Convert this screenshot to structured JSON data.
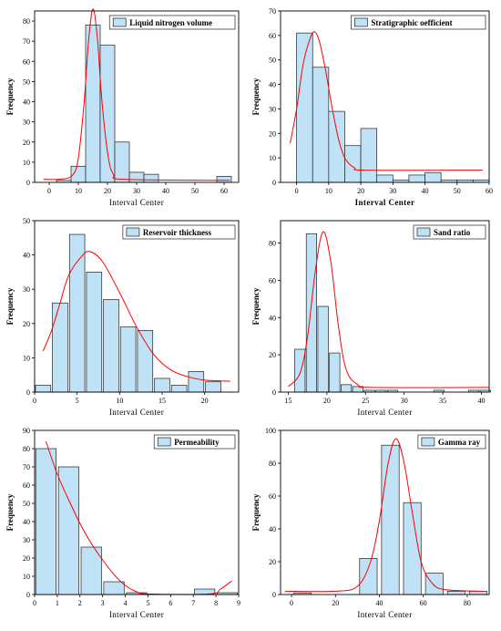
{
  "chart_data": [
    {
      "type": "bar",
      "legend": "Liquid nitrogen volume",
      "xlabel": "Interval Center",
      "xlabel_bold": false,
      "ylabel": "Frequency",
      "xlim": [
        -5,
        65
      ],
      "xticks": [
        0,
        10,
        20,
        30,
        40,
        50,
        60
      ],
      "ylim": [
        0,
        85
      ],
      "yticks": [
        0,
        10,
        20,
        30,
        40,
        50,
        60,
        70,
        80
      ],
      "bin_width": 5,
      "bins_x": [
        5,
        10,
        15,
        20,
        25,
        30,
        35,
        60
      ],
      "values": [
        1,
        8,
        78,
        68,
        20,
        5,
        4,
        3
      ],
      "fit_curve": [
        [
          -2,
          1.5
        ],
        [
          4,
          1.6
        ],
        [
          8,
          3.5
        ],
        [
          10,
          12
        ],
        [
          12,
          40
        ],
        [
          13.5,
          70
        ],
        [
          15,
          86
        ],
        [
          16.5,
          72
        ],
        [
          18,
          42
        ],
        [
          20,
          15
        ],
        [
          22,
          4
        ],
        [
          26,
          1.5
        ],
        [
          62,
          1
        ]
      ]
    },
    {
      "type": "bar",
      "legend": "Stratigraphic oefficient",
      "xlabel": "Interval Center",
      "xlabel_bold": true,
      "ylabel": "Frequency",
      "xlim": [
        -5,
        60
      ],
      "xticks": [
        0,
        10,
        20,
        30,
        40,
        50,
        60
      ],
      "ylim": [
        0,
        70
      ],
      "yticks": [
        0,
        10,
        20,
        30,
        40,
        50,
        60,
        70
      ],
      "bin_width": 5,
      "bins_x": [
        2.5,
        7.5,
        12.5,
        17.5,
        22.5,
        27.5,
        32.5,
        37.5,
        42.5,
        47.5,
        52.5,
        57.5
      ],
      "values": [
        61,
        47,
        29,
        15,
        22,
        3,
        1,
        3,
        4,
        1,
        1,
        1
      ],
      "fit_curve": [
        [
          -2,
          16
        ],
        [
          0,
          30
        ],
        [
          2,
          48
        ],
        [
          4,
          58
        ],
        [
          5.5,
          61.5
        ],
        [
          7,
          58
        ],
        [
          9,
          46
        ],
        [
          11,
          31
        ],
        [
          13,
          18
        ],
        [
          15,
          10
        ],
        [
          18,
          6
        ],
        [
          22,
          5
        ],
        [
          58,
          5
        ]
      ]
    },
    {
      "type": "bar",
      "legend": "Reservoir thickness",
      "xlabel": "Interval Center",
      "xlabel_bold": false,
      "ylabel": "Frequency",
      "xlim": [
        0,
        24
      ],
      "xticks": [
        0,
        5,
        10,
        15,
        20
      ],
      "ylim": [
        0,
        50
      ],
      "yticks": [
        0,
        10,
        20,
        30,
        40,
        50
      ],
      "bin_width": 1.8,
      "bins_x": [
        1,
        3,
        5,
        7,
        9,
        11,
        13,
        15,
        17,
        19,
        21
      ],
      "values": [
        2,
        26,
        46,
        35,
        27,
        19,
        18,
        4,
        2,
        6,
        3
      ],
      "fit_curve": [
        [
          1,
          12
        ],
        [
          2,
          18
        ],
        [
          3,
          26
        ],
        [
          4,
          34
        ],
        [
          5.5,
          39.5
        ],
        [
          6.5,
          41
        ],
        [
          8,
          38
        ],
        [
          10,
          29
        ],
        [
          12,
          19
        ],
        [
          14,
          11
        ],
        [
          16,
          6.5
        ],
        [
          18,
          4.5
        ],
        [
          20,
          3.5
        ],
        [
          23,
          3.2
        ]
      ]
    },
    {
      "type": "bar",
      "legend": "Sand ratio",
      "xlabel": "Interval Center",
      "xlabel_bold": false,
      "ylabel": "Frequency",
      "xlim": [
        14,
        41
      ],
      "xticks": [
        15,
        20,
        25,
        30,
        35,
        40
      ],
      "ylim": [
        0,
        92
      ],
      "yticks": [
        0,
        20,
        40,
        60,
        80
      ],
      "bin_width": 1.35,
      "bins_x": [
        16.5,
        18,
        19.5,
        21,
        22.5,
        24,
        25.5,
        27,
        28.5,
        30,
        31.5,
        33,
        34.5,
        36,
        37.5,
        39,
        40.5
      ],
      "values": [
        23,
        85,
        46,
        21,
        4,
        3,
        1,
        1,
        1,
        0,
        0,
        0,
        1,
        0,
        0,
        1,
        1
      ],
      "fit_curve": [
        [
          15,
          3
        ],
        [
          16.5,
          10
        ],
        [
          17.5,
          30
        ],
        [
          18.5,
          65
        ],
        [
          19.5,
          86
        ],
        [
          20.5,
          70
        ],
        [
          21.5,
          35
        ],
        [
          22.5,
          12
        ],
        [
          24,
          4
        ],
        [
          26,
          2.5
        ],
        [
          41,
          2.5
        ]
      ]
    },
    {
      "type": "bar",
      "legend": "Permeability",
      "xlabel": "Interval Center",
      "xlabel_bold": false,
      "ylabel": "Frequency",
      "xlim": [
        0,
        9
      ],
      "xticks": [
        0,
        1,
        2,
        3,
        4,
        5,
        6,
        7,
        8,
        9
      ],
      "ylim": [
        0,
        90
      ],
      "yticks": [
        0,
        10,
        20,
        30,
        40,
        50,
        60,
        70,
        80,
        90
      ],
      "bin_width": 0.9,
      "bins_x": [
        0.5,
        1.5,
        2.5,
        3.5,
        4.5,
        7.5,
        8.5
      ],
      "values": [
        80,
        70,
        26,
        7,
        1,
        3,
        1
      ],
      "fit_curve": [
        [
          0.5,
          84
        ],
        [
          1,
          66
        ],
        [
          1.5,
          52
        ],
        [
          2,
          39
        ],
        [
          2.5,
          28
        ],
        [
          3,
          19
        ],
        [
          3.5,
          11
        ],
        [
          4,
          5
        ],
        [
          4.5,
          1.5
        ],
        [
          5,
          0.3
        ],
        [
          7.7,
          0.3
        ],
        [
          8.2,
          3
        ],
        [
          8.7,
          7.5
        ]
      ]
    },
    {
      "type": "bar",
      "legend": "Gamma ray",
      "xlabel": "Interval Center",
      "xlabel_bold": false,
      "ylabel": "Frequency",
      "xlim": [
        -5,
        90
      ],
      "xticks": [
        0,
        20,
        40,
        60,
        80
      ],
      "ylim": [
        0,
        100
      ],
      "yticks": [
        0,
        20,
        40,
        60,
        80,
        100
      ],
      "bin_width": 8,
      "bins_x": [
        5,
        35,
        45,
        55,
        65,
        75,
        85
      ],
      "values": [
        1,
        22,
        91,
        56,
        13,
        2,
        2
      ],
      "fit_curve": [
        [
          -3,
          2
        ],
        [
          20,
          2
        ],
        [
          30,
          5
        ],
        [
          36,
          20
        ],
        [
          40,
          45
        ],
        [
          44,
          80
        ],
        [
          47.5,
          95
        ],
        [
          51,
          82
        ],
        [
          55,
          50
        ],
        [
          59,
          20
        ],
        [
          64,
          7
        ],
        [
          70,
          3
        ],
        [
          88,
          2
        ]
      ]
    }
  ],
  "colors": {
    "bar_fill": "#bfe2f6",
    "bar_stroke": "#222222",
    "fit_line": "#ff0000",
    "axis": "#000000"
  }
}
